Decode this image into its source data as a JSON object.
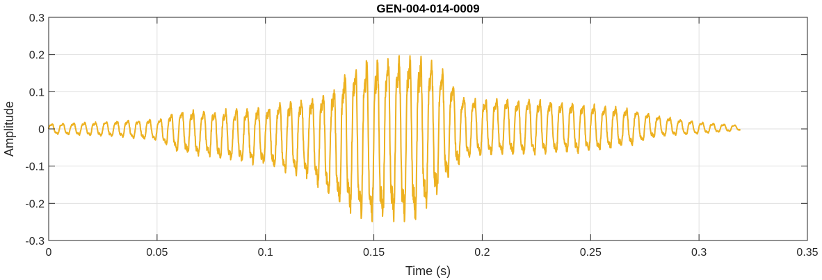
{
  "chart_data": {
    "type": "line",
    "title": "GEN-004-014-0009",
    "xlabel": "Time (s)",
    "ylabel": "Amplitude",
    "xlim": [
      0,
      0.35
    ],
    "ylim": [
      -0.3,
      0.3
    ],
    "xticks": [
      0,
      0.05,
      0.1,
      0.15,
      0.2,
      0.25,
      0.3,
      0.35
    ],
    "xtick_labels": [
      "0",
      "0.05",
      "0.1",
      "0.15",
      "0.2",
      "0.25",
      "0.3",
      "0.35"
    ],
    "yticks": [
      -0.3,
      -0.2,
      -0.1,
      0,
      0.1,
      0.2,
      0.3
    ],
    "ytick_labels": [
      "-0.3",
      "-0.2",
      "-0.1",
      "0",
      "0.1",
      "0.2",
      "0.3"
    ],
    "grid": true,
    "colors": {
      "line": "#EDB120",
      "grid": "#dfdfdf",
      "axis": "#262626"
    },
    "series": [
      {
        "x_range": [
          0,
          0.319
        ],
        "envelope": {
          "t": [
            0,
            0.02,
            0.035,
            0.05,
            0.06,
            0.08,
            0.1,
            0.12,
            0.13,
            0.14,
            0.15,
            0.16,
            0.17,
            0.18,
            0.19,
            0.2,
            0.22,
            0.25,
            0.27,
            0.28,
            0.3,
            0.319
          ],
          "max": [
            0.015,
            0.02,
            0.025,
            0.03,
            0.055,
            0.06,
            0.07,
            0.1,
            0.12,
            0.2,
            0.22,
            0.23,
            0.22,
            0.2,
            0.1,
            0.09,
            0.09,
            0.075,
            0.06,
            0.04,
            0.02,
            0.01
          ],
          "min": [
            -0.015,
            -0.02,
            -0.025,
            -0.035,
            -0.07,
            -0.09,
            -0.11,
            -0.15,
            -0.2,
            -0.26,
            -0.28,
            -0.28,
            -0.27,
            -0.2,
            -0.1,
            -0.08,
            -0.08,
            -0.07,
            -0.05,
            -0.025,
            -0.015,
            -0.005
          ]
        },
        "oscillation_period_s": 0.005
      }
    ]
  }
}
